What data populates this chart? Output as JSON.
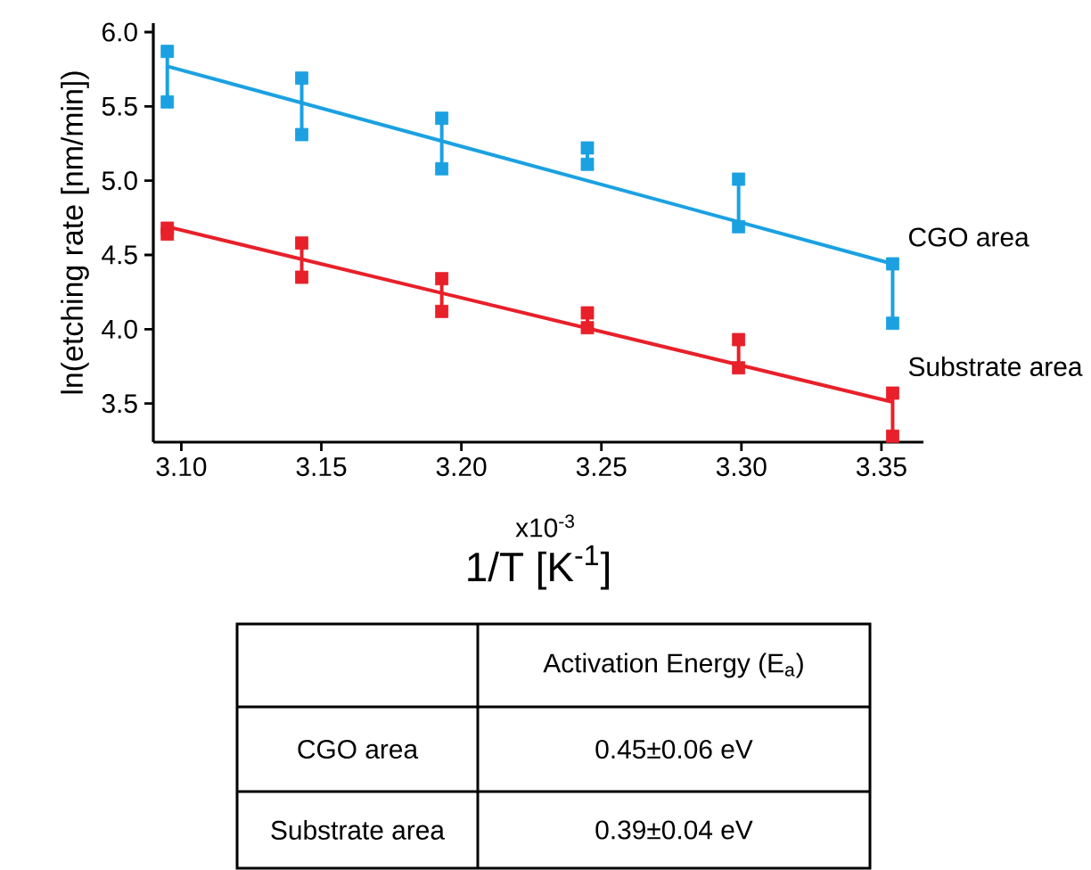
{
  "chart_data": {
    "type": "scatter",
    "xlabel": "1/T [K$^{-1}$]",
    "ylabel": "ln(etching rate [nm/min])",
    "xlim": [
      3.09,
      3.365
    ],
    "ylim": [
      3.24,
      6.06
    ],
    "xticks": [
      {
        "value": 3.1,
        "label": "3.10"
      },
      {
        "value": 3.15,
        "label": "3.15"
      },
      {
        "value": 3.2,
        "label": "3.20"
      },
      {
        "value": 3.25,
        "label": "3.25"
      },
      {
        "value": 3.3,
        "label": "3.30"
      },
      {
        "value": 3.35,
        "label": "3.35"
      }
    ],
    "yticks": [
      {
        "value": 3.5,
        "label": "3.5"
      },
      {
        "value": 4,
        "label": "4.0"
      },
      {
        "value": 4.5,
        "label": "4.5"
      },
      {
        "value": 5,
        "label": "5.0"
      },
      {
        "value": 5.5,
        "label": "5.5"
      },
      {
        "value": 6,
        "label": "6.0"
      }
    ],
    "grid": false,
    "series": [
      {
        "type": "line",
        "color": "#1ba1e2",
        "x": [
          3.095,
          3.354
        ],
        "values": [
          5.77,
          4.44
        ]
      },
      {
        "type": "line",
        "color": "#e8202a",
        "x": [
          3.095,
          3.354
        ],
        "values": [
          4.69,
          3.51
        ]
      },
      {
        "name": "CGO area",
        "color": "#1ba1e2",
        "marker": "square",
        "x": [
          3.095,
          3.095,
          3.143,
          3.143,
          3.193,
          3.193,
          3.245,
          3.245,
          3.299,
          3.299,
          3.354,
          3.354
        ],
        "values": [
          5.87,
          5.53,
          5.69,
          5.31,
          5.42,
          5.08,
          5.22,
          5.11,
          5.01,
          4.69,
          4.44,
          4.04
        ]
      },
      {
        "name": "Substrate area",
        "color": "#e8202a",
        "marker": "square",
        "x": [
          3.095,
          3.095,
          3.143,
          3.143,
          3.193,
          3.193,
          3.245,
          3.245,
          3.299,
          3.299,
          3.354,
          3.354
        ],
        "values": [
          4.68,
          4.64,
          4.58,
          4.35,
          4.34,
          4.12,
          4.11,
          4.01,
          3.93,
          3.74,
          3.57,
          3.28
        ]
      }
    ],
    "annotations": [
      "x10$^{-3}$",
      "Activation Energy (E$_{a}$)",
      "CGO area",
      "0.45±0.06 eV",
      "Substrate area",
      "0.39±0.04 eV"
    ]
  }
}
